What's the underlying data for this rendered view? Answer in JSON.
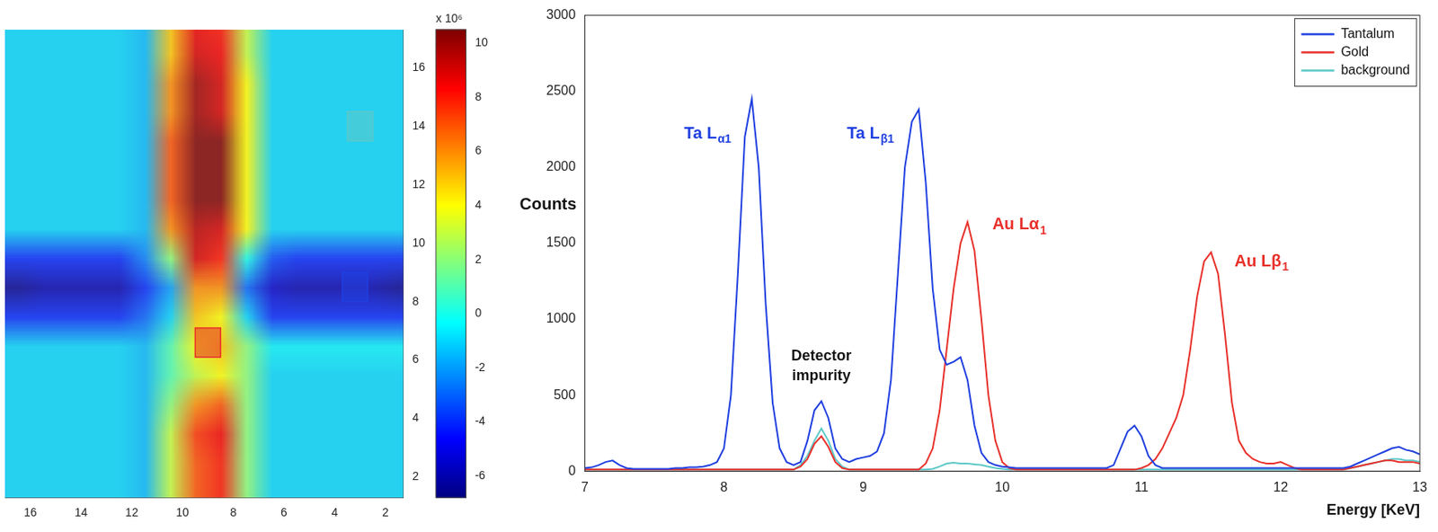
{
  "chart_data": [
    {
      "type": "heatmap",
      "x": [
        1.5,
        2.5,
        3.5,
        4.5,
        5.5,
        6.5,
        7.5,
        8.5,
        9.5,
        10.5,
        11.5,
        12.5,
        13.5,
        14.5,
        15.5,
        16.5
      ],
      "y": [
        1.5,
        2.5,
        3.5,
        4.5,
        5.5,
        6.5,
        7.5,
        8.5,
        9.5,
        10.5,
        11.5,
        12.5,
        13.5,
        14.5,
        15.5,
        16.5,
        17.5
      ],
      "values": [
        [
          -1,
          -1,
          -1,
          -1,
          -1,
          -1,
          2,
          8,
          7,
          3,
          -1.5,
          -1,
          -1,
          -1,
          -1,
          -1
        ],
        [
          -1,
          -1,
          -1,
          -1,
          -1,
          -1,
          2,
          8,
          7,
          3,
          -1.5,
          -1,
          -1,
          -1,
          -1,
          -1
        ],
        [
          -1,
          -1,
          -1,
          -1,
          -1,
          -1,
          2,
          8.5,
          7.5,
          3,
          -1.5,
          -1,
          -1,
          -1,
          -1,
          -1
        ],
        [
          -1,
          -1,
          -1,
          -1,
          -1,
          -1,
          2,
          7,
          6,
          2,
          -1.5,
          -1,
          -1,
          -1,
          -1,
          -1
        ],
        [
          -1,
          -1,
          -1,
          -1,
          -1,
          -1,
          2,
          4,
          3,
          1,
          -1.5,
          -1,
          -1,
          -1,
          -1,
          -1
        ],
        [
          -0.5,
          -0.5,
          -0.5,
          -0.5,
          -0.5,
          -0.5,
          2,
          5,
          4,
          1,
          -1.5,
          -1,
          -1,
          -1,
          -1,
          -1
        ],
        [
          -4,
          -4,
          -4,
          -4,
          -4,
          -4,
          -1,
          4,
          5,
          -1,
          -3,
          -4,
          -4,
          -4,
          -4,
          -4
        ],
        [
          -6.5,
          -6,
          -6,
          -6,
          -6,
          -5.5,
          -3,
          6,
          6,
          -2,
          -4,
          -6,
          -6,
          -6,
          -6,
          -6.5
        ],
        [
          -4,
          -4,
          -4,
          -4,
          -4,
          -3.5,
          0,
          8,
          9,
          2,
          -2.5,
          -4,
          -4,
          -4,
          -4,
          -4
        ],
        [
          -1,
          -1,
          -1,
          -1,
          -1,
          -1,
          4,
          9,
          9.5,
          6,
          -1.5,
          -1,
          -1,
          -1,
          -1,
          -1
        ],
        [
          -1,
          -1,
          -1,
          -1,
          -1,
          -1,
          4,
          10.5,
          10.5,
          7,
          -1.5,
          -1,
          -1,
          -1,
          -1,
          -1
        ],
        [
          -1,
          -1,
          -1,
          -1,
          -1,
          -1,
          4,
          10.5,
          10.5,
          7,
          -1.5,
          -1,
          -1,
          -1,
          -1,
          -1
        ],
        [
          -1,
          -1,
          -1,
          -1,
          -1,
          -1,
          4,
          10.5,
          10.5,
          7,
          -1.5,
          -1,
          -1,
          -1,
          -1,
          -1
        ],
        [
          -1,
          -1,
          -1,
          -1,
          -1,
          -1,
          4,
          9,
          10,
          6,
          -1.5,
          -1,
          -1,
          -1,
          -1,
          -1
        ],
        [
          -1,
          -1,
          -1,
          -1,
          -1,
          -1,
          4,
          9,
          10,
          6,
          -1.5,
          -1,
          -1,
          -1,
          -1,
          -1
        ],
        [
          -1,
          -1,
          -1,
          -1,
          -1,
          -1,
          3,
          8.5,
          9,
          5,
          -1.5,
          -1,
          -1,
          -1,
          -1,
          -1
        ],
        [
          -1,
          -1,
          -1,
          -1,
          -1,
          -1,
          3,
          8,
          8.5,
          5,
          -1.5,
          -1,
          -1,
          -1,
          -1,
          -1
        ]
      ],
      "xlim": [
        17,
        1.3
      ],
      "xticks": [
        2,
        4,
        6,
        8,
        10,
        12,
        14,
        16
      ],
      "ylim": [
        1.3,
        17.3
      ],
      "yticks": [
        2,
        4,
        6,
        8,
        10,
        12,
        14,
        16
      ],
      "colorbar_lim": [
        -6.8,
        10.5
      ],
      "colorbar_ticks": [
        -6,
        -4,
        -2,
        0,
        2,
        4,
        6,
        8,
        10
      ],
      "colorbar_label": "x 10⁶",
      "regions": [
        {
          "name": "background",
          "x": 3,
          "y": 14
        },
        {
          "name": "Tantalum",
          "x": 3.2,
          "y": 8.5
        },
        {
          "name": "Gold",
          "x": 9,
          "y": 6.6
        }
      ]
    },
    {
      "type": "line",
      "x_label": "Energy [KeV]",
      "y_label": "Counts",
      "x": [
        7,
        7.05,
        7.1,
        7.15,
        7.2,
        7.25,
        7.3,
        7.35,
        7.4,
        7.45,
        7.5,
        7.55,
        7.6,
        7.65,
        7.7,
        7.75,
        7.8,
        7.85,
        7.9,
        7.95,
        8,
        8.05,
        8.1,
        8.15,
        8.2,
        8.25,
        8.3,
        8.35,
        8.4,
        8.45,
        8.5,
        8.55,
        8.6,
        8.65,
        8.7,
        8.75,
        8.8,
        8.85,
        8.9,
        8.95,
        9,
        9.05,
        9.1,
        9.15,
        9.2,
        9.25,
        9.3,
        9.35,
        9.4,
        9.45,
        9.5,
        9.55,
        9.6,
        9.65,
        9.7,
        9.75,
        9.8,
        9.85,
        9.9,
        9.95,
        10,
        10.05,
        10.1,
        10.15,
        10.2,
        10.25,
        10.3,
        10.35,
        10.4,
        10.45,
        10.5,
        10.55,
        10.6,
        10.65,
        10.7,
        10.75,
        10.8,
        10.85,
        10.9,
        10.95,
        11,
        11.05,
        11.1,
        11.15,
        11.2,
        11.25,
        11.3,
        11.35,
        11.4,
        11.45,
        11.5,
        11.55,
        11.6,
        11.65,
        11.7,
        11.75,
        11.8,
        11.85,
        11.9,
        11.95,
        12,
        12.05,
        12.1,
        12.15,
        12.2,
        12.25,
        12.3,
        12.35,
        12.4,
        12.45,
        12.5,
        12.55,
        12.6,
        12.65,
        12.7,
        12.75,
        12.8,
        12.85,
        12.9,
        12.95,
        13
      ],
      "series": [
        {
          "name": "Tantalum",
          "color": "#1f3fe0",
          "values": [
            20,
            25,
            40,
            60,
            70,
            40,
            20,
            15,
            15,
            15,
            15,
            15,
            15,
            20,
            20,
            25,
            25,
            30,
            40,
            60,
            150,
            500,
            1300,
            2200,
            2450,
            2000,
            1100,
            450,
            150,
            60,
            40,
            60,
            200,
            400,
            460,
            350,
            150,
            80,
            60,
            80,
            90,
            100,
            130,
            250,
            600,
            1300,
            2000,
            2300,
            2380,
            1900,
            1200,
            800,
            700,
            720,
            750,
            600,
            300,
            120,
            60,
            40,
            30,
            25,
            20,
            20,
            20,
            20,
            20,
            20,
            20,
            20,
            20,
            20,
            20,
            20,
            20,
            20,
            40,
            150,
            260,
            300,
            230,
            100,
            40,
            20,
            20,
            20,
            20,
            20,
            20,
            20,
            20,
            20,
            20,
            20,
            20,
            20,
            20,
            20,
            20,
            20,
            20,
            20,
            20,
            20,
            20,
            20,
            20,
            20,
            20,
            20,
            30,
            50,
            70,
            90,
            110,
            130,
            150,
            160,
            140,
            130,
            110
          ]
        },
        {
          "name": "Gold",
          "color": "#e8302a",
          "values": [
            10,
            10,
            10,
            10,
            10,
            10,
            10,
            10,
            10,
            10,
            10,
            10,
            10,
            10,
            10,
            10,
            10,
            10,
            10,
            10,
            10,
            10,
            10,
            10,
            10,
            10,
            10,
            10,
            10,
            10,
            10,
            30,
            80,
            180,
            230,
            160,
            60,
            20,
            10,
            10,
            10,
            10,
            10,
            10,
            10,
            10,
            10,
            10,
            10,
            50,
            150,
            400,
            800,
            1200,
            1500,
            1640,
            1450,
            1000,
            500,
            200,
            60,
            20,
            10,
            10,
            10,
            10,
            10,
            10,
            10,
            10,
            10,
            10,
            10,
            10,
            10,
            10,
            10,
            10,
            10,
            10,
            20,
            40,
            80,
            150,
            250,
            350,
            500,
            800,
            1150,
            1380,
            1440,
            1300,
            900,
            450,
            200,
            120,
            80,
            60,
            50,
            50,
            60,
            40,
            20,
            10,
            10,
            10,
            10,
            10,
            10,
            10,
            20,
            30,
            40,
            50,
            60,
            70,
            70,
            60,
            60,
            60,
            50
          ]
        },
        {
          "name": "background",
          "color": "#5cc8c8",
          "values": [
            10,
            10,
            10,
            10,
            10,
            10,
            10,
            10,
            10,
            10,
            10,
            10,
            10,
            10,
            10,
            10,
            10,
            10,
            10,
            10,
            10,
            10,
            10,
            10,
            10,
            10,
            10,
            10,
            10,
            10,
            10,
            40,
            100,
            200,
            280,
            200,
            80,
            30,
            10,
            10,
            10,
            10,
            10,
            10,
            10,
            10,
            10,
            10,
            10,
            10,
            15,
            30,
            50,
            55,
            50,
            50,
            45,
            40,
            30,
            20,
            15,
            10,
            10,
            10,
            10,
            10,
            10,
            10,
            10,
            10,
            10,
            10,
            10,
            10,
            10,
            10,
            10,
            10,
            10,
            10,
            10,
            10,
            10,
            10,
            10,
            10,
            10,
            10,
            10,
            10,
            10,
            10,
            10,
            10,
            10,
            10,
            10,
            10,
            10,
            10,
            10,
            10,
            10,
            10,
            10,
            10,
            10,
            10,
            10,
            10,
            20,
            30,
            40,
            50,
            60,
            70,
            80,
            80,
            70,
            70,
            60
          ]
        }
      ],
      "xlim": [
        7,
        13
      ],
      "xticks": [
        7,
        8,
        9,
        10,
        11,
        12,
        13
      ],
      "ylim": [
        0,
        3000
      ],
      "yticks": [
        0,
        500,
        1000,
        1500,
        2000,
        2500,
        3000
      ],
      "grid": false,
      "legend": "upper right",
      "annotations": [
        {
          "text": "Ta L",
          "subscript": "α1",
          "x": 7.88,
          "y": 2220,
          "color": "#1f3fe0"
        },
        {
          "text": "Ta L",
          "subscript": "β1",
          "x": 9.05,
          "y": 2220,
          "color": "#1f3fe0"
        },
        {
          "text": "Au Lα",
          "subscript": "1",
          "x": 10.12,
          "y": 1620,
          "color": "#e8302a"
        },
        {
          "text": "Au Lβ",
          "subscript": "1",
          "x": 11.86,
          "y": 1380,
          "color": "#e8302a"
        },
        {
          "text": "Detector impurity",
          "x": 8.7,
          "y": 690,
          "color": "#111111"
        }
      ]
    }
  ]
}
